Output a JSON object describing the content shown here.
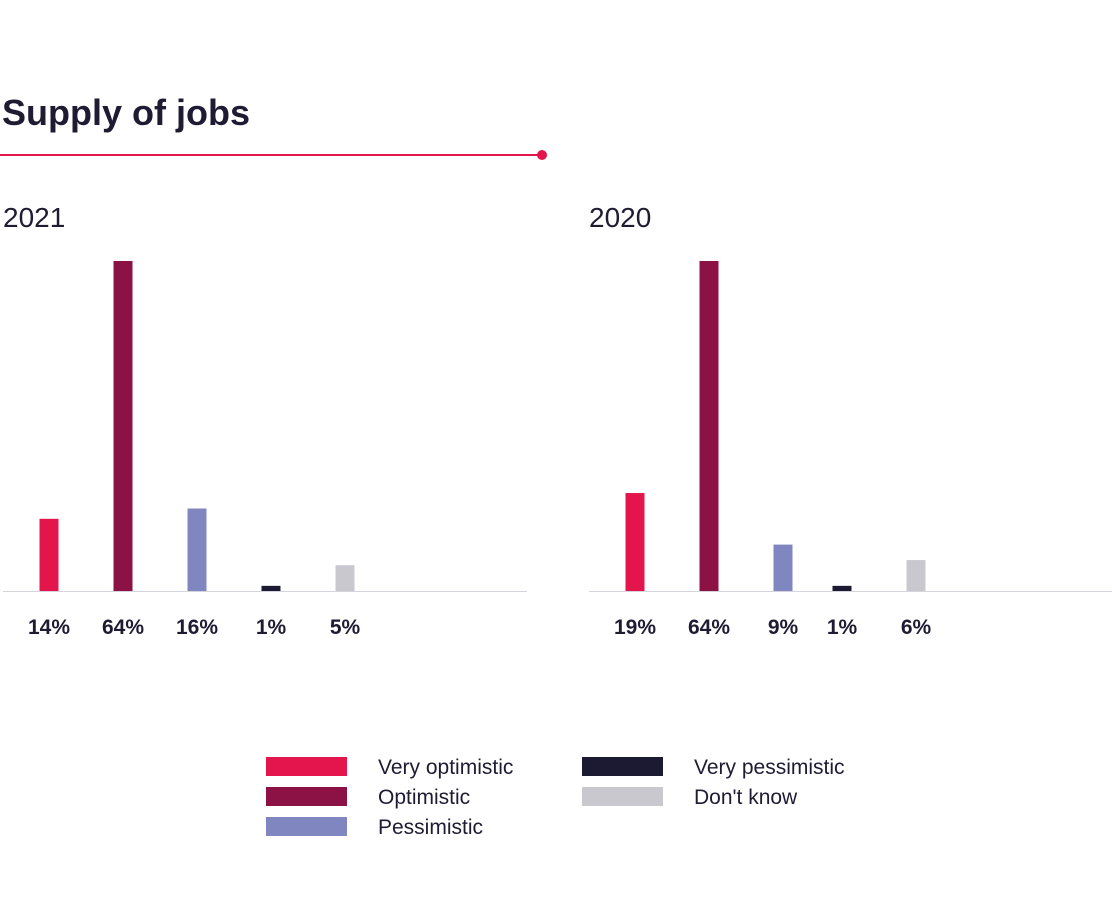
{
  "title": "Supply of jobs",
  "chart_data": [
    {
      "type": "bar",
      "panel_label": "2021",
      "categories": [
        "Very optimistic",
        "Optimistic",
        "Pessimistic",
        "Very pessimistic",
        "Don't know"
      ],
      "values": [
        14,
        64,
        16,
        1,
        5
      ],
      "value_labels": [
        "14%",
        "64%",
        "16%",
        "1%",
        "5%"
      ],
      "ylim": [
        0,
        64
      ],
      "grid": false,
      "legend": "bottom"
    },
    {
      "type": "bar",
      "panel_label": "2020",
      "categories": [
        "Very optimistic",
        "Optimistic",
        "Pessimistic",
        "Very pessimistic",
        "Don't know"
      ],
      "values": [
        19,
        64,
        9,
        1,
        6
      ],
      "value_labels": [
        "19%",
        "64%",
        "9%",
        "1%",
        "6%"
      ],
      "ylim": [
        0,
        64
      ],
      "grid": false,
      "legend": "bottom"
    }
  ],
  "legend": [
    {
      "label": "Very optimistic",
      "color": "#e3154c"
    },
    {
      "label": "Optimistic",
      "color": "#8c1145"
    },
    {
      "label": "Pessimistic",
      "color": "#7f86c0"
    },
    {
      "label": "Very pessimistic",
      "color": "#1c1a33"
    },
    {
      "label": "Don't know",
      "color": "#c8c8ce"
    }
  ]
}
